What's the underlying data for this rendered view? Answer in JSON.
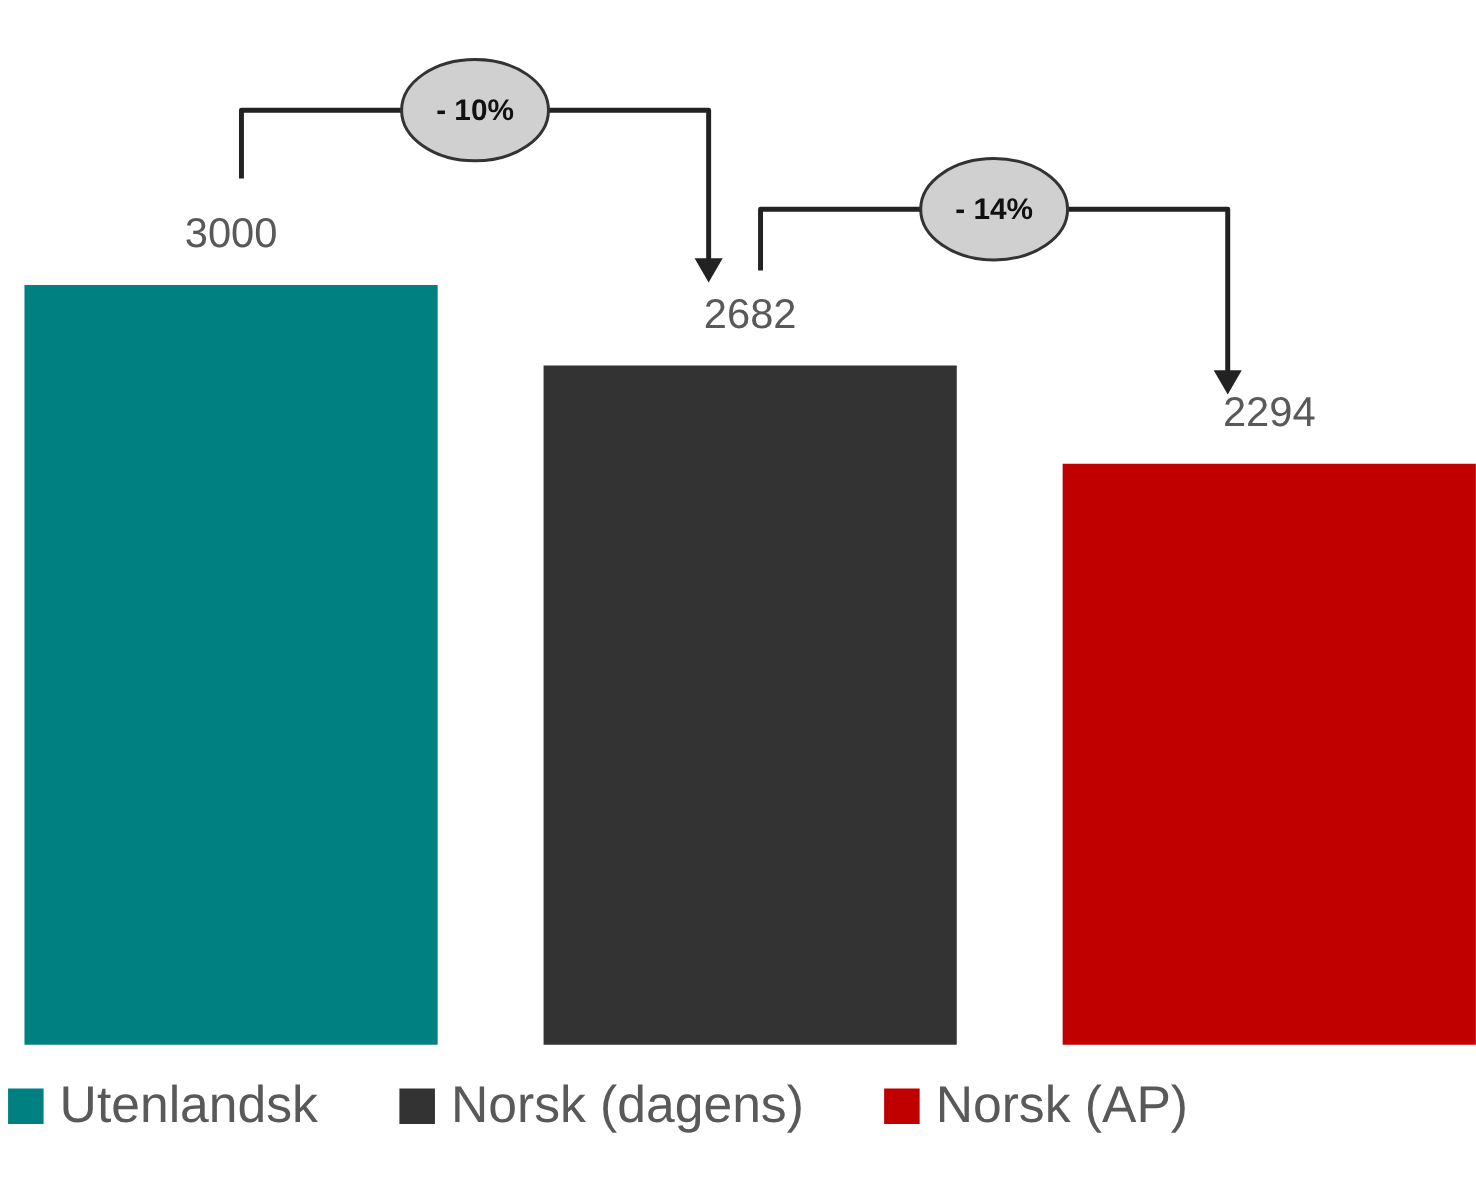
{
  "chart_data": {
    "type": "bar",
    "categories": [
      null,
      null,
      null
    ],
    "stacked": true,
    "series": [
      {
        "name": "Utenlandsk",
        "color": "#008080",
        "values": [
          3000,
          null,
          null
        ]
      },
      {
        "name": "Norsk (dagens)",
        "color": "#333333",
        "values": [
          null,
          2682,
          null
        ]
      },
      {
        "name": "Norsk (AP)",
        "color": "#c00000",
        "values": [
          null,
          null,
          2294
        ]
      }
    ],
    "data_labels": true,
    "legend": "bottom",
    "annotations": [
      "- 10%",
      "- 14%"
    ]
  }
}
